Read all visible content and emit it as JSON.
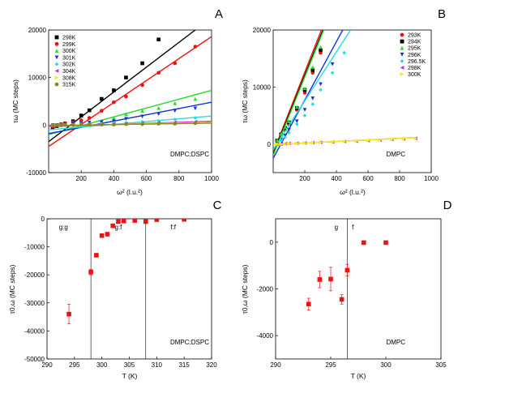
{
  "chart_data": [
    {
      "panel": "A",
      "type": "scatter",
      "xlabel": "ω² (l.u.²)",
      "ylabel": "τω (MC steps)",
      "xlim": [
        0,
        1000
      ],
      "ylim": [
        -10000,
        20000
      ],
      "xticks": [
        200,
        400,
        600,
        800,
        1000
      ],
      "yticks": [
        -10000,
        0,
        10000,
        20000
      ],
      "annotation": "DMPC:DSPC",
      "x": [
        25,
        50,
        75,
        100,
        150,
        200,
        250,
        325,
        400,
        475,
        575,
        675,
        775,
        900
      ],
      "series": [
        {
          "name": "298K",
          "color": "#000000",
          "marker": "square",
          "values": [
            -500,
            -200,
            0,
            300,
            800,
            2000,
            3100,
            5500,
            7300,
            10000,
            13000,
            18000,
            null,
            null
          ],
          "fit": [
            [
              0,
              -3500
            ],
            [
              900,
              20000
            ]
          ]
        },
        {
          "name": "299K",
          "color": "#ee1111",
          "marker": "circle",
          "values": [
            -300,
            0,
            200,
            400,
            600,
            1000,
            1500,
            3000,
            4800,
            6000,
            8400,
            11000,
            13000,
            16500
          ],
          "fit": [
            [
              0,
              -4500
            ],
            [
              1000,
              18600
            ]
          ]
        },
        {
          "name": "300K",
          "color": "#22dd22",
          "marker": "triangle-up",
          "values": [
            0,
            0,
            200,
            300,
            300,
            500,
            600,
            900,
            1500,
            2300,
            3000,
            3600,
            4600,
            5500
          ],
          "fit": [
            [
              0,
              -2000
            ],
            [
              1000,
              7300
            ]
          ]
        },
        {
          "name": "301K",
          "color": "#1133dd",
          "marker": "triangle-down",
          "values": [
            0,
            0,
            100,
            200,
            300,
            300,
            500,
            600,
            800,
            1300,
            1800,
            2300,
            3000,
            3500
          ],
          "fit": [
            [
              0,
              -1800
            ],
            [
              1000,
              4800
            ]
          ]
        },
        {
          "name": "302K",
          "color": "#22dddd",
          "marker": "diamond",
          "values": [
            0,
            0,
            0,
            100,
            100,
            200,
            200,
            300,
            400,
            500,
            700,
            900,
            1200,
            1500
          ],
          "fit": [
            [
              0,
              -1000
            ],
            [
              1000,
              1900
            ]
          ]
        },
        {
          "name": "304K",
          "color": "#dd22dd",
          "marker": "triangle-left",
          "values": [
            0,
            0,
            0,
            0,
            100,
            100,
            100,
            200,
            300,
            300,
            400,
            500,
            600,
            700
          ],
          "fit": [
            [
              0,
              -300
            ],
            [
              1000,
              800
            ]
          ]
        },
        {
          "name": "308K",
          "color": "#eeee11",
          "marker": "triangle-right",
          "values": [
            0,
            0,
            0,
            0,
            0,
            100,
            100,
            100,
            200,
            200,
            300,
            300,
            400,
            500
          ],
          "fit": [
            [
              0,
              -150
            ],
            [
              1000,
              550
            ]
          ]
        },
        {
          "name": "315K",
          "color": "#888822",
          "marker": "circle",
          "values": [
            0,
            0,
            0,
            0,
            0,
            100,
            100,
            100,
            100,
            200,
            200,
            300,
            300,
            400
          ],
          "fit": [
            [
              0,
              -100
            ],
            [
              1000,
              400
            ]
          ]
        }
      ]
    },
    {
      "panel": "B",
      "type": "scatter",
      "xlabel": "ω² (l.u.²)",
      "ylabel": "τω (MC steps)",
      "xlim": [
        0,
        1000
      ],
      "ylim": [
        -5000,
        20000
      ],
      "xticks": [
        200,
        400,
        600,
        800,
        1000
      ],
      "yticks": [
        0,
        10000,
        20000
      ],
      "annotation": "DMPC",
      "x": [
        25,
        50,
        75,
        100,
        150,
        200,
        250,
        300,
        375,
        450,
        525,
        600,
        675,
        750,
        825,
        900
      ],
      "series": [
        {
          "name": "293K",
          "color": "#ee1111",
          "marker": "circle",
          "values": [
            500,
            1500,
            2500,
            3500,
            6000,
            9000,
            12500,
            16000,
            null,
            null,
            null,
            null,
            null,
            null,
            null,
            null
          ],
          "fit": [
            [
              0,
              -1500
            ],
            [
              305,
              20000
            ]
          ]
        },
        {
          "name": "294K",
          "color": "#000000",
          "marker": "square",
          "values": [
            600,
            1700,
            2800,
            3800,
            6300,
            9500,
            13000,
            16500,
            null,
            null,
            null,
            null,
            null,
            null,
            null,
            null
          ],
          "fit": [
            [
              0,
              -1800
            ],
            [
              315,
              20000
            ]
          ]
        },
        {
          "name": "295K",
          "color": "#22dd22",
          "marker": "triangle-up",
          "values": [
            700,
            1800,
            3000,
            4000,
            6500,
            9800,
            13500,
            17000,
            null,
            null,
            null,
            null,
            null,
            null,
            null,
            null
          ],
          "fit": [
            [
              0,
              -2000
            ],
            [
              320,
              20000
            ]
          ]
        },
        {
          "name": "296K",
          "color": "#1133dd",
          "marker": "triangle-down",
          "values": [
            0,
            800,
            1500,
            2500,
            4000,
            6000,
            8000,
            10500,
            14000,
            null,
            null,
            null,
            null,
            null,
            null,
            null
          ],
          "fit": [
            [
              0,
              -2500
            ],
            [
              440,
              20000
            ]
          ]
        },
        {
          "name": "296.5K",
          "color": "#22dddd",
          "marker": "diamond",
          "values": [
            0,
            600,
            1200,
            2000,
            3500,
            5000,
            7000,
            9500,
            12500,
            16000,
            null,
            null,
            null,
            null,
            null,
            null
          ],
          "fit": [
            [
              0,
              -1000
            ],
            [
              490,
              20000
            ]
          ]
        },
        {
          "name": "298K",
          "color": "#dd22dd",
          "marker": "triangle-left",
          "values": [
            0,
            0,
            50,
            100,
            150,
            200,
            250,
            300,
            350,
            450,
            500,
            600,
            700,
            800,
            900,
            1000
          ],
          "fit": [
            [
              0,
              -100
            ],
            [
              900,
              1150
            ]
          ]
        },
        {
          "name": "300K",
          "color": "#eeee11",
          "marker": "triangle-right",
          "values": [
            0,
            0,
            50,
            100,
            150,
            200,
            250,
            300,
            350,
            450,
            500,
            600,
            700,
            800,
            900,
            1000
          ],
          "fit": [
            [
              0,
              -100
            ],
            [
              900,
              1150
            ]
          ]
        }
      ]
    },
    {
      "panel": "C",
      "type": "scatter",
      "xlabel": "T (K)",
      "ylabel": "τ0,ω (MC steps)",
      "xlim": [
        290,
        320
      ],
      "ylim": [
        -50000,
        0
      ],
      "xticks": [
        290,
        295,
        300,
        305,
        310,
        315,
        320
      ],
      "yticks": [
        0,
        -10000,
        -20000,
        -30000,
        -40000,
        -50000
      ],
      "annotation": "DMPC:DSPC",
      "vlines": [
        298,
        308
      ],
      "region_labels": [
        {
          "text": "g:g",
          "x": 293
        },
        {
          "text": "g:f",
          "x": 303
        },
        {
          "text": "f:f",
          "x": 313
        }
      ],
      "series": [
        {
          "color": "#ee1111",
          "marker": "square",
          "x": [
            294,
            298,
            299,
            300,
            301,
            302,
            303,
            304,
            306,
            308,
            310,
            315
          ],
          "y": [
            -34000,
            -19000,
            -13000,
            -6000,
            -5500,
            -2500,
            -1000,
            -800,
            -600,
            -1000,
            -300,
            -200
          ],
          "err": [
            3500,
            1000,
            600,
            400,
            300,
            200,
            200,
            200,
            200,
            200,
            200,
            200
          ]
        }
      ]
    },
    {
      "panel": "D",
      "type": "scatter",
      "xlabel": "T (K)",
      "ylabel": "τ0,ω (MC steps)",
      "xlim": [
        290,
        305
      ],
      "ylim": [
        -5000,
        1000
      ],
      "xticks": [
        290,
        295,
        300,
        305
      ],
      "yticks": [
        0,
        -2000,
        -4000
      ],
      "annotation": "DMPC",
      "vlines": [
        296.5
      ],
      "region_labels": [
        {
          "text": "g",
          "x": 295.5
        },
        {
          "text": "f",
          "x": 297
        }
      ],
      "series": [
        {
          "color": "#ee1111",
          "marker": "square",
          "x": [
            293,
            294,
            295,
            296,
            296.5,
            298,
            300
          ],
          "y": [
            -2650,
            -1600,
            -1580,
            -2450,
            -1200,
            -20,
            -20
          ],
          "err": [
            250,
            350,
            500,
            200,
            250,
            0,
            0
          ]
        }
      ]
    }
  ],
  "panel_letters": [
    "A",
    "B",
    "C",
    "D"
  ]
}
